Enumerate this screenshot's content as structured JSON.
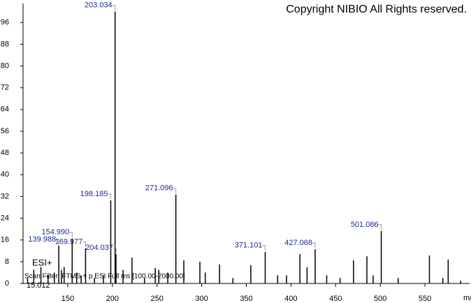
{
  "chart_data": {
    "type": "stem",
    "annotation": "Copyright NIBIO All Rights reserved.",
    "ionization": "ESI+",
    "scan_filter": "Scan Filter: FTMS + p ESI Full ms [100.00-2000.00]",
    "retention_time": "15.012",
    "x_label": "m/z",
    "color": "#000000",
    "label_color": "#1a2a9a",
    "x": [
      105,
      112,
      120,
      128,
      135,
      139.988,
      143,
      146,
      154.99,
      160,
      165,
      169.977,
      180,
      190,
      198.185,
      203.034,
      204.037,
      212,
      222,
      236,
      248,
      252,
      262,
      271.096,
      280,
      298,
      304,
      320,
      335,
      355,
      371.101,
      385,
      395,
      410,
      418,
      427.068,
      440,
      455,
      470,
      485,
      492,
      501.086,
      520,
      555,
      570,
      576,
      590
    ],
    "values": [
      2,
      5,
      6,
      3,
      4,
      13.9,
      5,
      6,
      16.5,
      4,
      3,
      12.9,
      2,
      3,
      30.6,
      100,
      10.8,
      5,
      9.5,
      2,
      5.7,
      5,
      4,
      32.7,
      8.5,
      8,
      4,
      7,
      2,
      6.7,
      11.6,
      3,
      3,
      10.8,
      6,
      12.6,
      3,
      2,
      8.5,
      10,
      3,
      19.3,
      2,
      10.3,
      2,
      8.8,
      1
    ],
    "x_labels": [
      null,
      null,
      null,
      null,
      null,
      "139.988",
      null,
      null,
      "154.990",
      null,
      null,
      "169.977",
      null,
      null,
      "198.185",
      "203.034",
      "204.037",
      null,
      null,
      null,
      null,
      null,
      null,
      "271.096",
      null,
      null,
      null,
      null,
      null,
      null,
      "371.101",
      null,
      null,
      null,
      null,
      "427.068",
      null,
      null,
      null,
      null,
      null,
      "501.086",
      null,
      null,
      null,
      null,
      null
    ],
    "xlim": [
      100,
      600
    ],
    "xticks": [
      150,
      200,
      250,
      300,
      350,
      400,
      450,
      500,
      550
    ],
    "ylim": [
      0,
      103
    ],
    "yticks": [
      0,
      8,
      16,
      24,
      32,
      40,
      48,
      56,
      64,
      72,
      80,
      88,
      96
    ]
  }
}
